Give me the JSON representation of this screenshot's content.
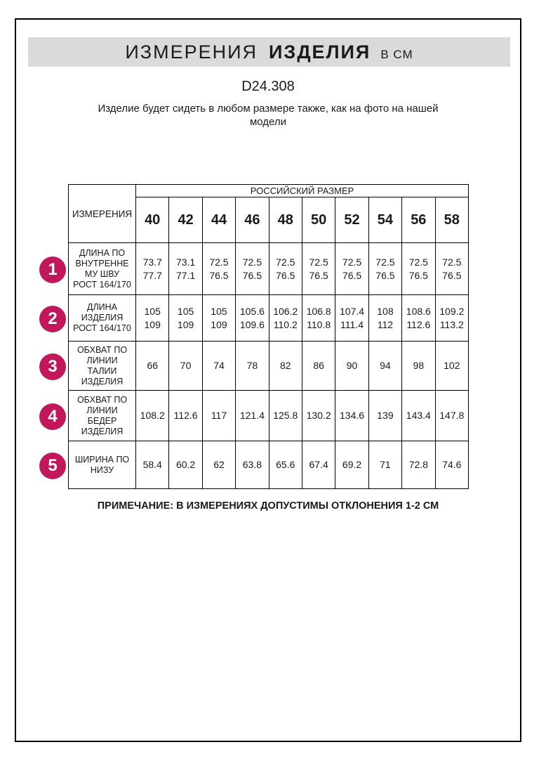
{
  "header": {
    "title_main": "ИЗМЕРЕНИЯ",
    "title_bold": "ИЗДЕЛИЯ",
    "title_units": "В СМ",
    "product_code": "D24.308",
    "subtitle": "Изделие будет сидеть в любом размере также, как на фото на нашей\nмодели"
  },
  "table": {
    "corner_header": "ИЗМЕРЕНИЯ",
    "size_group_header": "РОССИЙСКИЙ РАЗМЕР",
    "sizes": [
      "40",
      "42",
      "44",
      "46",
      "48",
      "50",
      "52",
      "54",
      "56",
      "58"
    ],
    "rows": [
      {
        "num": "1",
        "label": "ДЛИНА ПО\nВНУТРЕННЕ\nМУ ШВУ\nРОСТ 164/170",
        "values": [
          "73.7\n77.7",
          "73.1\n77.1",
          "72.5\n76.5",
          "72.5\n76.5",
          "72.5\n76.5",
          "72.5\n76.5",
          "72.5\n76.5",
          "72.5\n76.5",
          "72.5\n76.5",
          "72.5\n76.5"
        ]
      },
      {
        "num": "2",
        "label": "ДЛИНА\nИЗДЕЛИЯ\nРОСТ 164/170",
        "values": [
          "105\n109",
          "105\n109",
          "105\n109",
          "105.6\n109.6",
          "106.2\n110.2",
          "106.8\n110.8",
          "107.4\n111.4",
          "108\n112",
          "108.6\n112.6",
          "109.2\n113.2"
        ]
      },
      {
        "num": "3",
        "label": "ОБХВАТ ПО\nЛИНИИ\nТАЛИИ\nИЗДЕЛИЯ",
        "values": [
          "66",
          "70",
          "74",
          "78",
          "82",
          "86",
          "90",
          "94",
          "98",
          "102"
        ]
      },
      {
        "num": "4",
        "label": "ОБХВАТ ПО\nЛИНИИ\nБЕДЕР\nИЗДЕЛИЯ",
        "values": [
          "108.2",
          "112.6",
          "117",
          "121.4",
          "125.8",
          "130.2",
          "134.6",
          "139",
          "143.4",
          "147.8"
        ]
      },
      {
        "num": "5",
        "label": "ШИРИНА ПО\nНИЗУ",
        "values": [
          "58.4",
          "60.2",
          "62",
          "63.8",
          "65.6",
          "67.4",
          "69.2",
          "71",
          "72.8",
          "74.6"
        ]
      }
    ]
  },
  "footer": {
    "note": "ПРИМЕЧАНИЕ: В ИЗМЕРЕНИЯХ ДОПУСТИМЫ ОТКЛОНЕНИЯ 1-2 СМ"
  },
  "colors": {
    "accent": "#C2185B",
    "title_bar_bg": "#DADADA",
    "border": "#000000"
  }
}
